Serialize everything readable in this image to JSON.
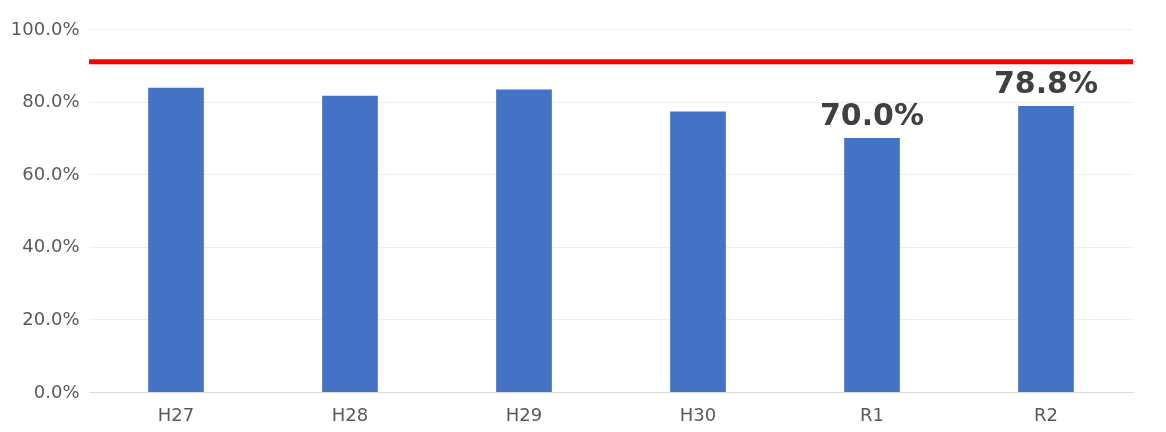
{
  "chart_data": {
    "type": "bar",
    "categories": [
      "H27",
      "H28",
      "H29",
      "H30",
      "R1",
      "R2"
    ],
    "values": [
      83.8,
      81.6,
      83.3,
      77.3,
      70.0,
      78.8
    ],
    "color": "#4472c4",
    "value_labels": [
      null,
      null,
      null,
      null,
      "70.0%",
      "78.8%"
    ],
    "ylim": [
      0,
      100
    ],
    "yticks": [
      {
        "value": 0,
        "label": "0.0%"
      },
      {
        "value": 20,
        "label": "20.0%"
      },
      {
        "value": 40,
        "label": "40.0%"
      },
      {
        "value": 60,
        "label": "60.0%"
      },
      {
        "value": 80,
        "label": "80.0%"
      },
      {
        "value": 100,
        "label": "100.0%"
      }
    ],
    "ref_lines": [
      {
        "axis": "y",
        "value": 91.0,
        "color": "#ff0000"
      }
    ],
    "grid": "y"
  }
}
